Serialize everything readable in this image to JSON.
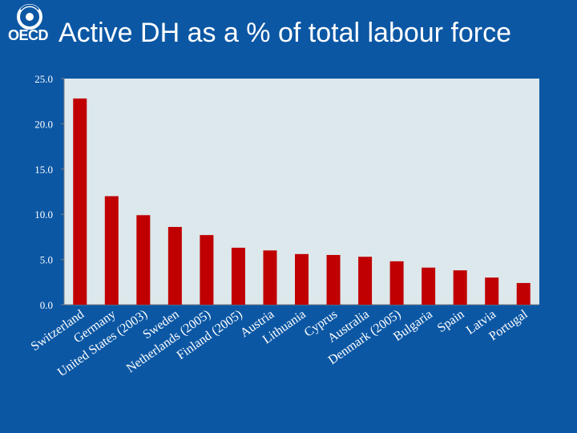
{
  "header": {
    "logo_text": "OECD",
    "title": "Active DH as a % of total labour force"
  },
  "colors": {
    "background": "#0b57a4",
    "plot_area": "#dce8ec",
    "bar": "#c00000",
    "text": "#ffffff"
  },
  "chart_data": {
    "type": "bar",
    "title": "Active DH as a % of total labour force",
    "xlabel": "",
    "ylabel": "",
    "ylim": [
      0,
      25
    ],
    "yticks": [
      "0.0",
      "5.0",
      "10.0",
      "15.0",
      "20.0",
      "25.0"
    ],
    "categories": [
      "Switzerland",
      "Germany",
      "United States (2003)",
      "Sweden",
      "Netherlands (2005)",
      "Finland (2005)",
      "Austria",
      "Lithuania",
      "Cyprus",
      "Australia",
      "Denmark (2005)",
      "Bulgaria",
      "Spain",
      "Latvia",
      "Portugal"
    ],
    "values": [
      22.8,
      12.0,
      9.9,
      8.6,
      7.7,
      6.3,
      6.0,
      5.6,
      5.5,
      5.3,
      4.8,
      4.1,
      3.8,
      3.0,
      2.4
    ],
    "grid": false,
    "legend": "none"
  }
}
